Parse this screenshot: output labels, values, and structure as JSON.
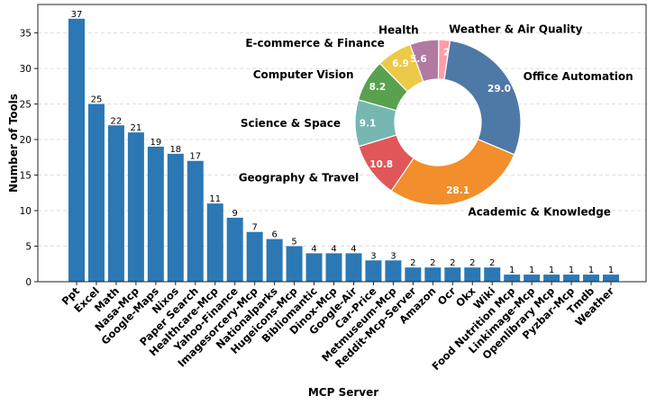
{
  "chart_data": [
    {
      "type": "bar",
      "xlabel": "MCP Server",
      "ylabel": "Number of Tools",
      "ylim": [
        0,
        39
      ],
      "yticks": [
        0,
        5,
        10,
        15,
        20,
        25,
        30,
        35
      ],
      "grid": "horizontal dashed",
      "bar_color": "#2b78b4",
      "categories": [
        "Ppt",
        "Excel",
        "Math",
        "Nasa-Mcp",
        "Google-Maps",
        "Nixos",
        "Paper Search",
        "Healthcare-Mcp",
        "Yahoo-Finance",
        "Imagesorcery-Mcp",
        "Nationalparks",
        "Hugeicons-Mcp",
        "Bibliomantic",
        "Dinox-Mcp",
        "Google-Air",
        "Car-Price",
        "Metmuseum-Mcp",
        "Reddit-Mcp-Server",
        "Amazon",
        "Ocr",
        "Okx",
        "Wiki",
        "Food Nutrition Mcp",
        "Linkimage-Mcp",
        "Openlibrary Mcp",
        "Pyzbar-Mcp",
        "Tmdb",
        "Weather"
      ],
      "values": [
        37,
        25,
        22,
        21,
        19,
        18,
        17,
        11,
        9,
        7,
        6,
        5,
        4,
        4,
        4,
        3,
        3,
        2,
        2,
        2,
        2,
        2,
        1,
        1,
        1,
        1,
        1,
        1
      ]
    },
    {
      "type": "pie",
      "style": "donut",
      "slices": [
        {
          "label": "Weather & Air Quality",
          "value": 2.2,
          "color": "#ff9da7"
        },
        {
          "label": "Office Automation",
          "value": 29.0,
          "color": "#4e79a7"
        },
        {
          "label": "Academic & Knowledge",
          "value": 28.1,
          "color": "#f28e2b"
        },
        {
          "label": "Geography & Travel",
          "value": 10.8,
          "color": "#e15759"
        },
        {
          "label": "Science & Space",
          "value": 9.1,
          "color": "#76b7b2"
        },
        {
          "label": "Computer Vision",
          "value": 8.2,
          "color": "#59a14f"
        },
        {
          "label": "E-commerce & Finance",
          "value": 6.9,
          "color": "#edc948"
        },
        {
          "label": "Health",
          "value": 5.6,
          "color": "#b07aa1"
        }
      ]
    }
  ]
}
